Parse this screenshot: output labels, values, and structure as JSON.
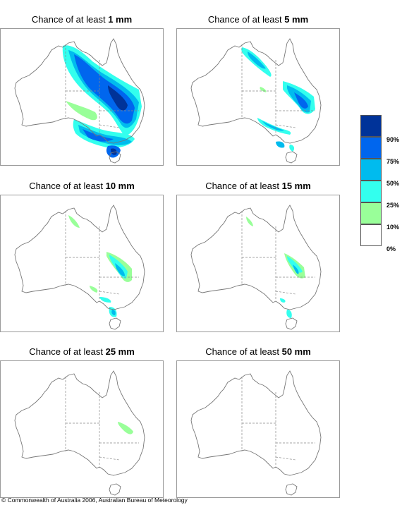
{
  "panels": [
    {
      "title_prefix": "Chance of at least ",
      "amount": "1 mm"
    },
    {
      "title_prefix": "Chance of at least ",
      "amount": "5 mm"
    },
    {
      "title_prefix": "Chance of at least ",
      "amount": "10 mm"
    },
    {
      "title_prefix": "Chance of at least ",
      "amount": "15 mm"
    },
    {
      "title_prefix": "Chance of at least ",
      "amount": "25 mm"
    },
    {
      "title_prefix": "Chance of at least ",
      "amount": "50 mm"
    }
  ],
  "legend": {
    "labels": [
      "90%",
      "75%",
      "50%",
      "25%",
      "10%",
      "0%"
    ],
    "colors": [
      "#003399",
      "#0066ee",
      "#00bbee",
      "#33ffee",
      "#99ff99",
      "#ffffff"
    ]
  },
  "copyright": "© Commonwealth of Australia 2006, Australian Bureau of Meteorology"
}
